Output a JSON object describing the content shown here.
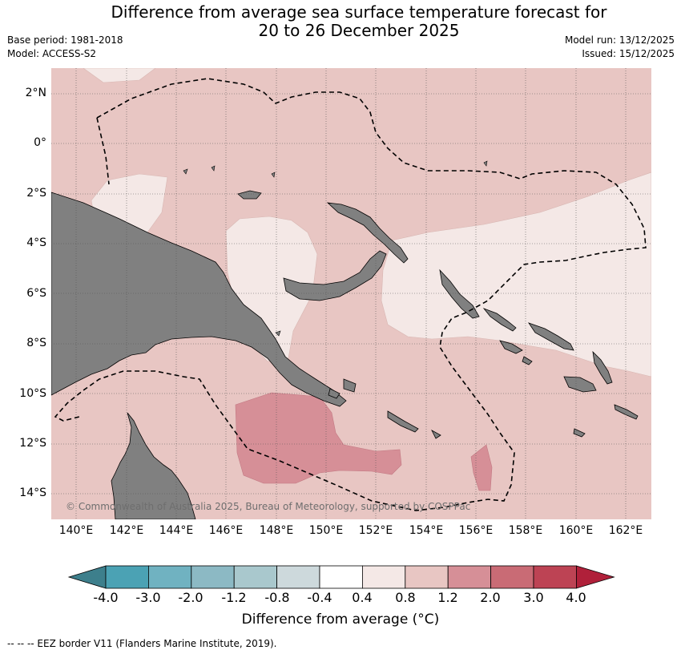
{
  "header": {
    "title_line1": "Difference from average sea surface temperature forecast for",
    "title_line2": "20 to 26 December 2025",
    "base_period": "Base period: 1981-2018",
    "model": "Model: ACCESS-S2",
    "model_run": "Model run: 13/12/2025",
    "issued": "Issued: 15/12/2025"
  },
  "map": {
    "region": "Papua New Guinea / Solomon Sea / Coral Sea",
    "lat_labels": [
      "2°N",
      "0°",
      "2°S",
      "4°S",
      "6°S",
      "8°S",
      "10°S",
      "12°S",
      "14°S"
    ],
    "lon_labels": [
      "140°E",
      "142°E",
      "144°E",
      "146°E",
      "148°E",
      "150°E",
      "152°E",
      "154°E",
      "156°E",
      "158°E",
      "160°E",
      "162°E"
    ],
    "copyright": "© Commonwealth of Australia 2025, Bureau of Meteorology, supported by COSPPac",
    "colors": {
      "land": "#808080",
      "band_0_4_0_8": "#f4e8e6",
      "band_0_8_1_2": "#e8c6c3",
      "band_1_2_2_0": "#d68f97",
      "grid": "#555555"
    }
  },
  "colorbar": {
    "ticks": [
      "-4.0",
      "-3.0",
      "-2.0",
      "-1.2",
      "-0.8",
      "-0.4",
      "0.4",
      "0.8",
      "1.2",
      "2.0",
      "3.0",
      "4.0"
    ],
    "colors": [
      "#3d7f8c",
      "#4ba2b4",
      "#70b2c1",
      "#8cb9c4",
      "#a9c8cd",
      "#cdd9dc",
      "#ffffff",
      "#f4e8e6",
      "#e8c6c3",
      "#d68f97",
      "#c96b75",
      "#bd4354",
      "#b0203a"
    ],
    "label": "Difference from average (°C)"
  },
  "legend": {
    "eez_note": "--  --  -- EEZ border V11 (Flanders Marine Institute, 2019)."
  }
}
